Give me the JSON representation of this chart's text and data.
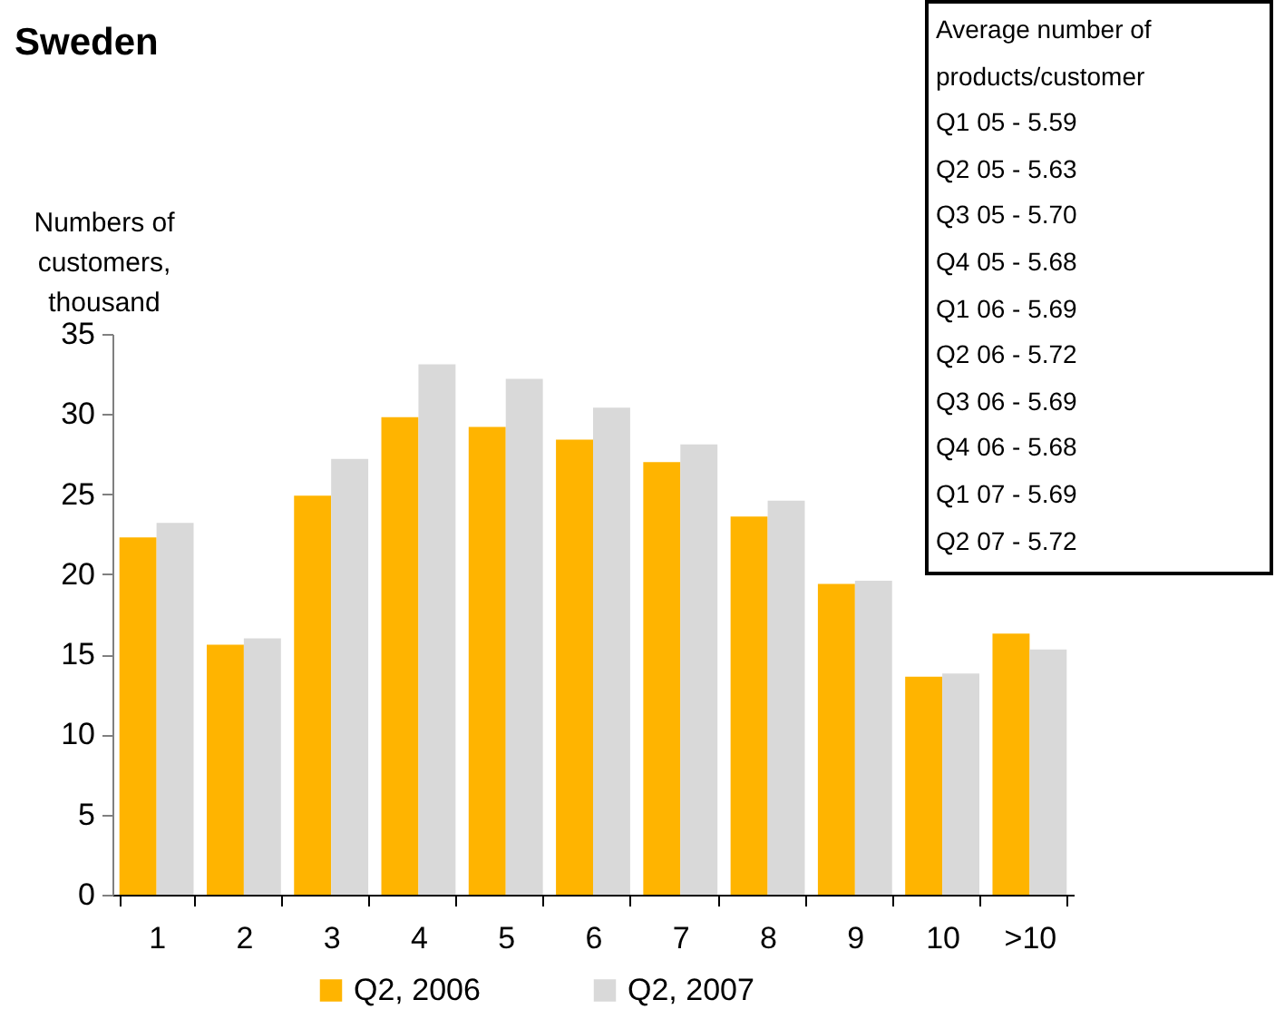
{
  "chart_data": {
    "type": "bar",
    "title": "Sweden",
    "ylabel": "Numbers of\ncustomers,\nthousand",
    "categories": [
      "1",
      "2",
      "3",
      "4",
      "5",
      "6",
      "7",
      "8",
      "9",
      "10",
      ">10"
    ],
    "series": [
      {
        "name": "Q2, 2006",
        "color": "#ffb400",
        "values": [
          22.3,
          15.6,
          24.9,
          29.8,
          29.2,
          28.4,
          27.0,
          23.6,
          19.4,
          13.6,
          16.3
        ]
      },
      {
        "name": "Q2, 2007",
        "color": "#d9d9d9",
        "values": [
          23.2,
          16.0,
          27.2,
          33.1,
          32.2,
          30.4,
          28.1,
          24.6,
          19.6,
          13.8,
          15.3
        ]
      }
    ],
    "ylim": [
      0,
      35
    ],
    "yticks": [
      0,
      5,
      10,
      15,
      20,
      25,
      30,
      35
    ],
    "grid": false,
    "legend": "bottom",
    "annotations": [
      "Average number of products/customer",
      "Q1 05 - 5.59",
      "Q2 05 - 5.63",
      "Q3 05 - 5.70",
      "Q4 05 - 5.68",
      "Q1 06 - 5.69",
      "Q2 06 - 5.72",
      "Q3 06 - 5.69",
      "Q4 06 - 5.68",
      "Q1 07 - 5.69",
      "Q2 07 - 5.72"
    ]
  }
}
